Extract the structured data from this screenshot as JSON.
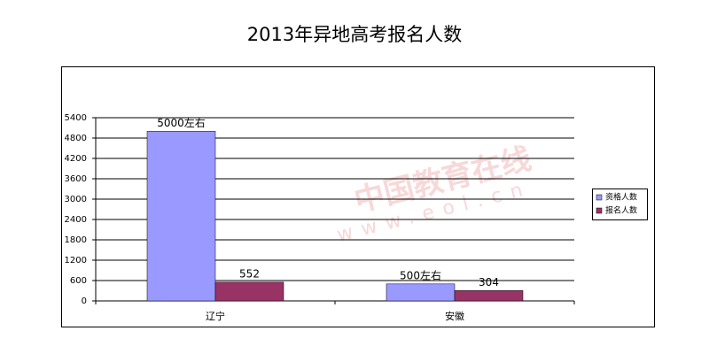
{
  "chart_data": {
    "type": "bar",
    "title": "2013年异地高考报名人数",
    "categories": [
      "辽宁",
      "安徽"
    ],
    "series": [
      {
        "name": "资格人数",
        "color": "#9999ff",
        "values": [
          5000,
          500
        ],
        "value_labels": [
          "5000左右",
          "500左右"
        ]
      },
      {
        "name": "报名人数",
        "color": "#993366",
        "values": [
          552,
          304
        ]
      }
    ],
    "ylim": [
      0,
      5400
    ],
    "yticks": [
      0,
      600,
      1200,
      1800,
      2400,
      3000,
      3600,
      4200,
      4800,
      5400
    ],
    "grid": true,
    "legend": "right",
    "watermark": [
      "中国教育在线",
      "www.eol.cn"
    ]
  }
}
